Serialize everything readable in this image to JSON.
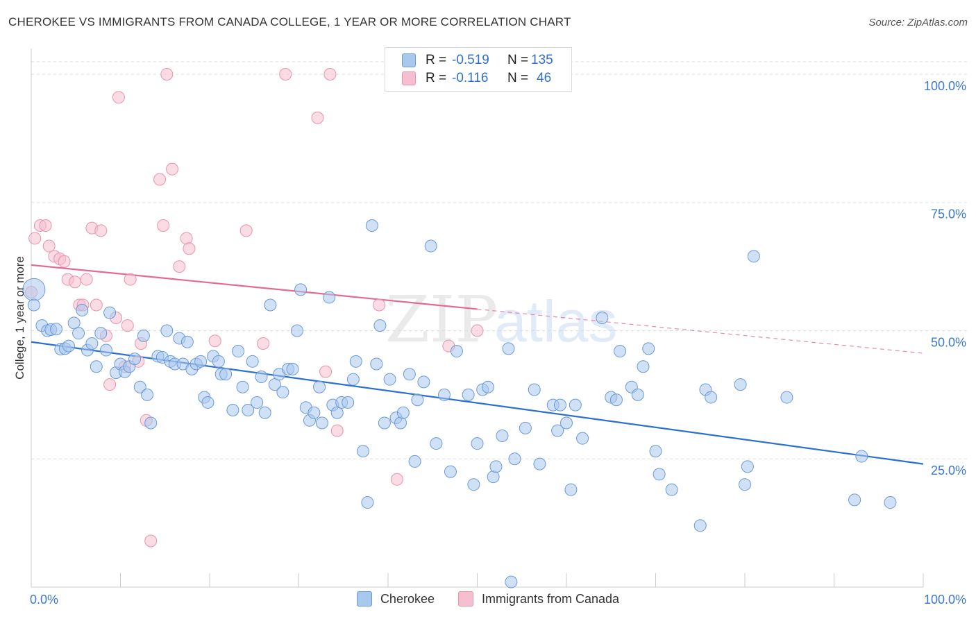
{
  "header": {
    "title": "CHEROKEE VS IMMIGRANTS FROM CANADA COLLEGE, 1 YEAR OR MORE CORRELATION CHART",
    "source": "Source: ZipAtlas.com"
  },
  "legend": {
    "rows": [
      {
        "r_label": "R =",
        "r_value": "-0.519",
        "n_label": "N =",
        "n_value": "135"
      },
      {
        "r_label": "R =",
        "r_value": "-0.116",
        "n_label": "N =",
        "n_value": "46"
      }
    ]
  },
  "bottom_legend": [
    "Cherokee",
    "Immigrants from Canada"
  ],
  "watermark": {
    "zip": "ZIP",
    "atlas": "atlas"
  },
  "colors": {
    "blue_fill": "#a9c8ee",
    "blue_stroke": "#6a9ad8",
    "blue_line": "#2b6fd1",
    "pink_fill": "#f6bfd0",
    "pink_stroke": "#e893ad",
    "pink_line": "#e46a92",
    "axis_label": "#3a78d0",
    "grid": "#dddddd"
  },
  "chart_data": {
    "type": "scatter",
    "title": "CHEROKEE VS IMMIGRANTS FROM CANADA COLLEGE, 1 YEAR OR MORE CORRELATION CHART",
    "xlabel": "",
    "ylabel": "College, 1 year or more",
    "xlim": [
      0,
      100
    ],
    "ylim": [
      0,
      105
    ],
    "x_tick_labels": [
      "0.0%",
      "100.0%"
    ],
    "y_ticks": [
      25,
      50,
      75,
      100
    ],
    "y_tick_labels": [
      "25.0%",
      "50.0%",
      "75.0%",
      "100.0%"
    ],
    "grid": true,
    "legend_position": "top-center",
    "series": [
      {
        "name": "Cherokee",
        "r": -0.519,
        "n": 135,
        "trend": {
          "x0": 0,
          "y0": 47.8,
          "x1": 100,
          "y1": 24.0
        },
        "points": [
          [
            0.3,
            58.0
          ],
          [
            0.3,
            55.0
          ],
          [
            1.2,
            51.0
          ],
          [
            1.8,
            50.0
          ],
          [
            2.2,
            50.2
          ],
          [
            2.8,
            50.3
          ],
          [
            3.3,
            46.4
          ],
          [
            3.8,
            46.5
          ],
          [
            4.2,
            47.0
          ],
          [
            4.8,
            51.5
          ],
          [
            5.3,
            49.5
          ],
          [
            5.7,
            54.0
          ],
          [
            6.3,
            46.2
          ],
          [
            6.8,
            47.5
          ],
          [
            7.3,
            43.0
          ],
          [
            7.8,
            49.5
          ],
          [
            8.4,
            46.2
          ],
          [
            8.8,
            53.5
          ],
          [
            9.5,
            41.8
          ],
          [
            10.0,
            43.5
          ],
          [
            10.5,
            42.0
          ],
          [
            11.0,
            43.0
          ],
          [
            11.6,
            44.5
          ],
          [
            12.2,
            39.0
          ],
          [
            12.6,
            49.0
          ],
          [
            13.0,
            37.5
          ],
          [
            13.4,
            32.0
          ],
          [
            14.2,
            45.0
          ],
          [
            14.7,
            44.8
          ],
          [
            15.2,
            50.0
          ],
          [
            15.6,
            44.0
          ],
          [
            16.1,
            43.5
          ],
          [
            16.6,
            48.5
          ],
          [
            17.0,
            43.5
          ],
          [
            17.5,
            47.8
          ],
          [
            18.0,
            42.5
          ],
          [
            18.5,
            43.5
          ],
          [
            19.0,
            44.0
          ],
          [
            19.4,
            37.0
          ],
          [
            19.8,
            36.0
          ],
          [
            20.4,
            45.0
          ],
          [
            21.0,
            44.0
          ],
          [
            21.3,
            41.5
          ],
          [
            21.8,
            41.5
          ],
          [
            22.6,
            34.5
          ],
          [
            23.2,
            46.0
          ],
          [
            23.7,
            39.0
          ],
          [
            24.3,
            34.5
          ],
          [
            24.8,
            44.0
          ],
          [
            25.3,
            36.0
          ],
          [
            25.8,
            41.0
          ],
          [
            26.2,
            34.0
          ],
          [
            26.8,
            55.0
          ],
          [
            27.3,
            39.5
          ],
          [
            27.8,
            41.5
          ],
          [
            28.2,
            38.0
          ],
          [
            28.8,
            42.5
          ],
          [
            29.3,
            42.5
          ],
          [
            29.8,
            50.0
          ],
          [
            30.2,
            58.0
          ],
          [
            30.8,
            35.0
          ],
          [
            31.2,
            32.5
          ],
          [
            31.7,
            34.0
          ],
          [
            32.3,
            39.0
          ],
          [
            32.6,
            32.0
          ],
          [
            33.4,
            56.5
          ],
          [
            33.8,
            35.5
          ],
          [
            34.3,
            34.0
          ],
          [
            34.8,
            36.0
          ],
          [
            35.5,
            36.0
          ],
          [
            36.1,
            40.5
          ],
          [
            36.4,
            44.0
          ],
          [
            37.2,
            26.5
          ],
          [
            37.7,
            16.5
          ],
          [
            38.2,
            70.5
          ],
          [
            38.7,
            43.5
          ],
          [
            39.1,
            51.0
          ],
          [
            39.6,
            32.0
          ],
          [
            40.2,
            40.5
          ],
          [
            40.9,
            33.0
          ],
          [
            41.4,
            32.0
          ],
          [
            41.7,
            34.0
          ],
          [
            42.4,
            41.5
          ],
          [
            43.0,
            24.5
          ],
          [
            43.3,
            36.5
          ],
          [
            44.0,
            40.0
          ],
          [
            44.8,
            66.5
          ],
          [
            45.4,
            28.0
          ],
          [
            46.3,
            37.5
          ],
          [
            47.0,
            22.5
          ],
          [
            47.7,
            46.0
          ],
          [
            49.0,
            37.5
          ],
          [
            49.6,
            20.0
          ],
          [
            50.0,
            28.0
          ],
          [
            50.6,
            38.5
          ],
          [
            51.2,
            39.0
          ],
          [
            51.8,
            21.5
          ],
          [
            52.1,
            23.5
          ],
          [
            52.8,
            29.5
          ],
          [
            53.5,
            46.5
          ],
          [
            53.8,
            1.0
          ],
          [
            54.2,
            25.0
          ],
          [
            55.4,
            31.0
          ],
          [
            56.4,
            38.5
          ],
          [
            57.0,
            24.0
          ],
          [
            58.5,
            35.5
          ],
          [
            59.0,
            30.5
          ],
          [
            59.3,
            35.5
          ],
          [
            60.0,
            32.0
          ],
          [
            60.5,
            19.0
          ],
          [
            61.0,
            35.5
          ],
          [
            61.8,
            29.0
          ],
          [
            64.0,
            52.5
          ],
          [
            65.0,
            37.0
          ],
          [
            65.6,
            36.5
          ],
          [
            66.0,
            46.0
          ],
          [
            67.3,
            39.0
          ],
          [
            68.0,
            37.5
          ],
          [
            68.6,
            43.0
          ],
          [
            69.2,
            46.5
          ],
          [
            70.0,
            26.5
          ],
          [
            70.4,
            22.0
          ],
          [
            71.8,
            19.0
          ],
          [
            75.0,
            12.0
          ],
          [
            75.6,
            38.5
          ],
          [
            76.2,
            37.0
          ],
          [
            79.5,
            39.5
          ],
          [
            80.0,
            20.0
          ],
          [
            80.3,
            23.5
          ],
          [
            81.0,
            64.5
          ],
          [
            84.7,
            37.0
          ],
          [
            92.3,
            17.0
          ],
          [
            93.1,
            25.5
          ],
          [
            96.3,
            16.5
          ]
        ]
      },
      {
        "name": "Immigrants from Canada",
        "r": -0.116,
        "n": 46,
        "trend": {
          "x0": 0,
          "y0": 62.8,
          "x1": 50,
          "y1": 54.2
        },
        "trend_dashed": {
          "x0": 50,
          "y0": 54.2,
          "x1": 100,
          "y1": 45.6
        },
        "points": [
          [
            0.4,
            68.0
          ],
          [
            1.0,
            70.5
          ],
          [
            1.6,
            70.5
          ],
          [
            2.0,
            66.5
          ],
          [
            2.6,
            64.5
          ],
          [
            3.2,
            64.0
          ],
          [
            3.7,
            63.5
          ],
          [
            4.1,
            60.0
          ],
          [
            4.9,
            59.5
          ],
          [
            5.4,
            55.0
          ],
          [
            5.8,
            55.0
          ],
          [
            6.2,
            60.0
          ],
          [
            6.8,
            70.0
          ],
          [
            7.3,
            55.0
          ],
          [
            7.8,
            69.5
          ],
          [
            8.4,
            49.0
          ],
          [
            8.8,
            39.5
          ],
          [
            9.5,
            52.5
          ],
          [
            9.8,
            95.5
          ],
          [
            10.5,
            43.0
          ],
          [
            10.8,
            51.0
          ],
          [
            11.1,
            60.0
          ],
          [
            12.0,
            44.0
          ],
          [
            12.3,
            47.5
          ],
          [
            12.9,
            32.5
          ],
          [
            13.4,
            9.0
          ],
          [
            14.4,
            79.5
          ],
          [
            14.8,
            70.5
          ],
          [
            15.2,
            100.0
          ],
          [
            15.8,
            81.5
          ],
          [
            16.6,
            62.5
          ],
          [
            17.4,
            68.0
          ],
          [
            17.7,
            66.0
          ],
          [
            20.6,
            48.0
          ],
          [
            24.1,
            69.5
          ],
          [
            26.0,
            47.5
          ],
          [
            28.5,
            100.0
          ],
          [
            32.1,
            91.5
          ],
          [
            33.0,
            42.0
          ],
          [
            33.5,
            100.0
          ],
          [
            34.3,
            30.5
          ],
          [
            41.0,
            21.0
          ],
          [
            46.8,
            47.0
          ],
          [
            50.0,
            50.0
          ],
          [
            39.0,
            55.0
          ],
          [
            0.0,
            57.5
          ]
        ]
      }
    ]
  }
}
